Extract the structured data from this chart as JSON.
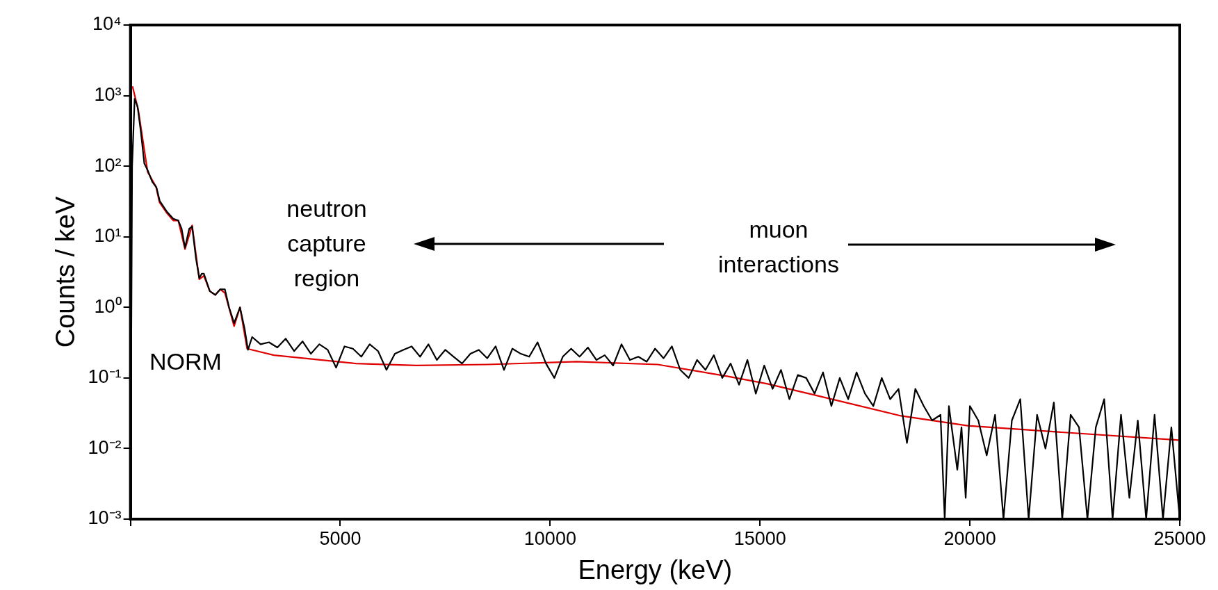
{
  "chart_data": {
    "type": "line",
    "xlabel": "Energy (keV)",
    "ylabel": "Counts / keV",
    "log": "y",
    "marker": "none",
    "xlim": [
      0,
      25000
    ],
    "xticks": [
      {
        "value": 0,
        "label": null
      },
      5000,
      10000,
      15000,
      20000,
      25000
    ],
    "ylim": [
      0.001,
      10000
    ],
    "yticks": [
      {
        "value": 0.001,
        "label": "10⁻³"
      },
      {
        "value": 0.01,
        "label": "10⁻²"
      },
      {
        "value": 0.1,
        "label": "10⁻¹"
      },
      {
        "value": 1,
        "label": "10⁰"
      },
      {
        "value": 10,
        "label": "10¹"
      },
      {
        "value": 100,
        "label": "10²"
      },
      {
        "value": 1000,
        "label": "10³"
      },
      {
        "value": 10000,
        "label": "10⁴"
      }
    ],
    "annotations": [
      "neutron capture region",
      "muon interactions",
      "NORM"
    ],
    "series": [
      {
        "color": "#000000",
        "x": [
          0,
          40,
          100,
          170,
          250,
          330,
          420,
          520,
          620,
          700,
          860,
          1020,
          1140,
          1220,
          1300,
          1400,
          1470,
          1560,
          1640,
          1700,
          1750,
          1890,
          2020,
          2140,
          2250,
          2350,
          2470,
          2610,
          2720,
          2800,
          2900,
          3100,
          3300,
          3500,
          3700,
          3900,
          4100,
          4300,
          4500,
          4700,
          4900,
          5100,
          5300,
          5500,
          5700,
          5900,
          6100,
          6300,
          6500,
          6700,
          6900,
          7100,
          7300,
          7500,
          7700,
          7900,
          8100,
          8300,
          8500,
          8700,
          8900,
          9100,
          9300,
          9500,
          9700,
          9900,
          10100,
          10300,
          10500,
          10700,
          10900,
          11100,
          11300,
          11500,
          11700,
          11900,
          12100,
          12300,
          12500,
          12700,
          12900,
          13100,
          13300,
          13500,
          13700,
          13900,
          14100,
          14300,
          14500,
          14700,
          14900,
          15100,
          15300,
          15500,
          15700,
          15900,
          16100,
          16300,
          16500,
          16700,
          16900,
          17100,
          17300,
          17500,
          17700,
          17900,
          18100,
          18300,
          18500,
          18700,
          18900,
          19100,
          19300,
          19400,
          19500,
          19700,
          19800,
          19900,
          20000,
          20200,
          20400,
          20600,
          20800,
          21000,
          21200,
          21400,
          21600,
          21800,
          22000,
          22200,
          22400,
          22600,
          22800,
          23000,
          23200,
          23400,
          23600,
          23800,
          24000,
          24200,
          24400,
          24600,
          24800,
          25000
        ],
        "values": [
          0.001,
          100,
          900,
          700,
          300,
          110,
          85,
          60,
          50,
          32,
          23,
          18,
          17,
          13,
          7,
          13,
          14,
          5,
          2.6,
          3,
          3,
          1.7,
          1.5,
          1.8,
          1.8,
          1,
          0.6,
          1,
          0.5,
          0.25,
          0.38,
          0.3,
          0.32,
          0.27,
          0.36,
          0.24,
          0.33,
          0.22,
          0.3,
          0.25,
          0.14,
          0.28,
          0.26,
          0.2,
          0.3,
          0.24,
          0.13,
          0.22,
          0.25,
          0.28,
          0.2,
          0.3,
          0.18,
          0.25,
          0.2,
          0.16,
          0.22,
          0.25,
          0.19,
          0.28,
          0.13,
          0.26,
          0.22,
          0.2,
          0.32,
          0.16,
          0.1,
          0.2,
          0.26,
          0.2,
          0.27,
          0.18,
          0.21,
          0.15,
          0.3,
          0.18,
          0.2,
          0.17,
          0.26,
          0.19,
          0.28,
          0.13,
          0.1,
          0.18,
          0.13,
          0.21,
          0.1,
          0.16,
          0.08,
          0.18,
          0.06,
          0.15,
          0.07,
          0.13,
          0.05,
          0.11,
          0.1,
          0.06,
          0.12,
          0.04,
          0.1,
          0.05,
          0.12,
          0.06,
          0.04,
          0.1,
          0.05,
          0.07,
          0.012,
          0.07,
          0.04,
          0.025,
          0.03,
          0.001,
          0.04,
          0.005,
          0.02,
          0.002,
          0.04,
          0.025,
          0.008,
          0.03,
          0.001,
          0.025,
          0.05,
          0.001,
          0.03,
          0.01,
          0.045,
          0.001,
          0.03,
          0.02,
          0.001,
          0.02,
          0.05,
          0.001,
          0.03,
          0.002,
          0.025,
          0.001,
          0.03,
          0.001,
          0.02,
          0.001
        ]
      },
      {
        "color": "#e00000",
        "x": [
          50,
          190,
          410,
          610,
          690,
          860,
          1020,
          1140,
          1300,
          1470,
          1640,
          1750,
          1890,
          2020,
          2140,
          2250,
          2470,
          2610,
          2780,
          3420,
          5370,
          6810,
          8500,
          10630,
          12560,
          14170,
          15160,
          16210,
          18360,
          19950,
          22190,
          24930,
          25000
        ],
        "values": [
          1350,
          610,
          83,
          51,
          31,
          22,
          17,
          17,
          6.7,
          14.5,
          2.5,
          2.8,
          1.7,
          1.5,
          1.8,
          1.6,
          0.54,
          1,
          0.26,
          0.21,
          0.16,
          0.15,
          0.155,
          0.17,
          0.155,
          0.107,
          0.083,
          0.059,
          0.029,
          0.021,
          0.017,
          0.0132,
          0.013
        ]
      }
    ]
  }
}
